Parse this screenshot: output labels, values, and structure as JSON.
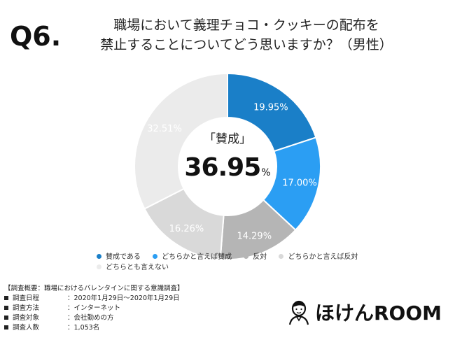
{
  "question": {
    "number": "Q6.",
    "line1": "職場において義理チョコ・クッキーの配布を",
    "line2": "禁止することについてどう思いますか？（男性）"
  },
  "center": {
    "label": "「賛成」",
    "value": "36.95",
    "unit": "%"
  },
  "chart_data": {
    "type": "pie",
    "series": [
      {
        "name": "賛成である",
        "value": 19.95,
        "label": "19.95%",
        "color": "#1a7fc8"
      },
      {
        "name": "どちらかと言えば賛成",
        "value": 17.0,
        "label": "17.00%",
        "color": "#2b9ef3"
      },
      {
        "name": "反対",
        "value": 14.29,
        "label": "14.29%",
        "color": "#b5b5b5"
      },
      {
        "name": "どちらかと言えば反対",
        "value": 16.26,
        "label": "16.26%",
        "color": "#d9d9d9"
      },
      {
        "name": "どちらとも言えない",
        "value": 32.51,
        "label": "32.51%",
        "color": "#ebebeb"
      }
    ],
    "label_colors": [
      "#ffffff",
      "#ffffff",
      "#ffffff",
      "#ffffff",
      "#ffffff"
    ]
  },
  "legend": [
    {
      "label": "賛成である",
      "color": "#1a7fc8"
    },
    {
      "label": "どちらかと言えば賛成",
      "color": "#2b9ef3"
    },
    {
      "label": "反対",
      "color": "#b5b5b5"
    },
    {
      "label": "どちらかと言えば反対",
      "color": "#d9d9d9"
    },
    {
      "label": "どちらとも言えない",
      "color": "#ebebeb"
    }
  ],
  "survey": {
    "heading": "【調査概要：職場におけるバレンタインに関する意識調査】",
    "rows": [
      {
        "label": "調査日程",
        "value": "：2020年1月29日～2020年1月29日"
      },
      {
        "label": "調査方法",
        "value": "：インターネット"
      },
      {
        "label": "調査対象",
        "value": "：会社勤めの方"
      },
      {
        "label": "調査人数",
        "value": "：1,053名"
      }
    ]
  },
  "brand": {
    "name": "ほけんROOM",
    "icon": "person-avatar-icon"
  }
}
